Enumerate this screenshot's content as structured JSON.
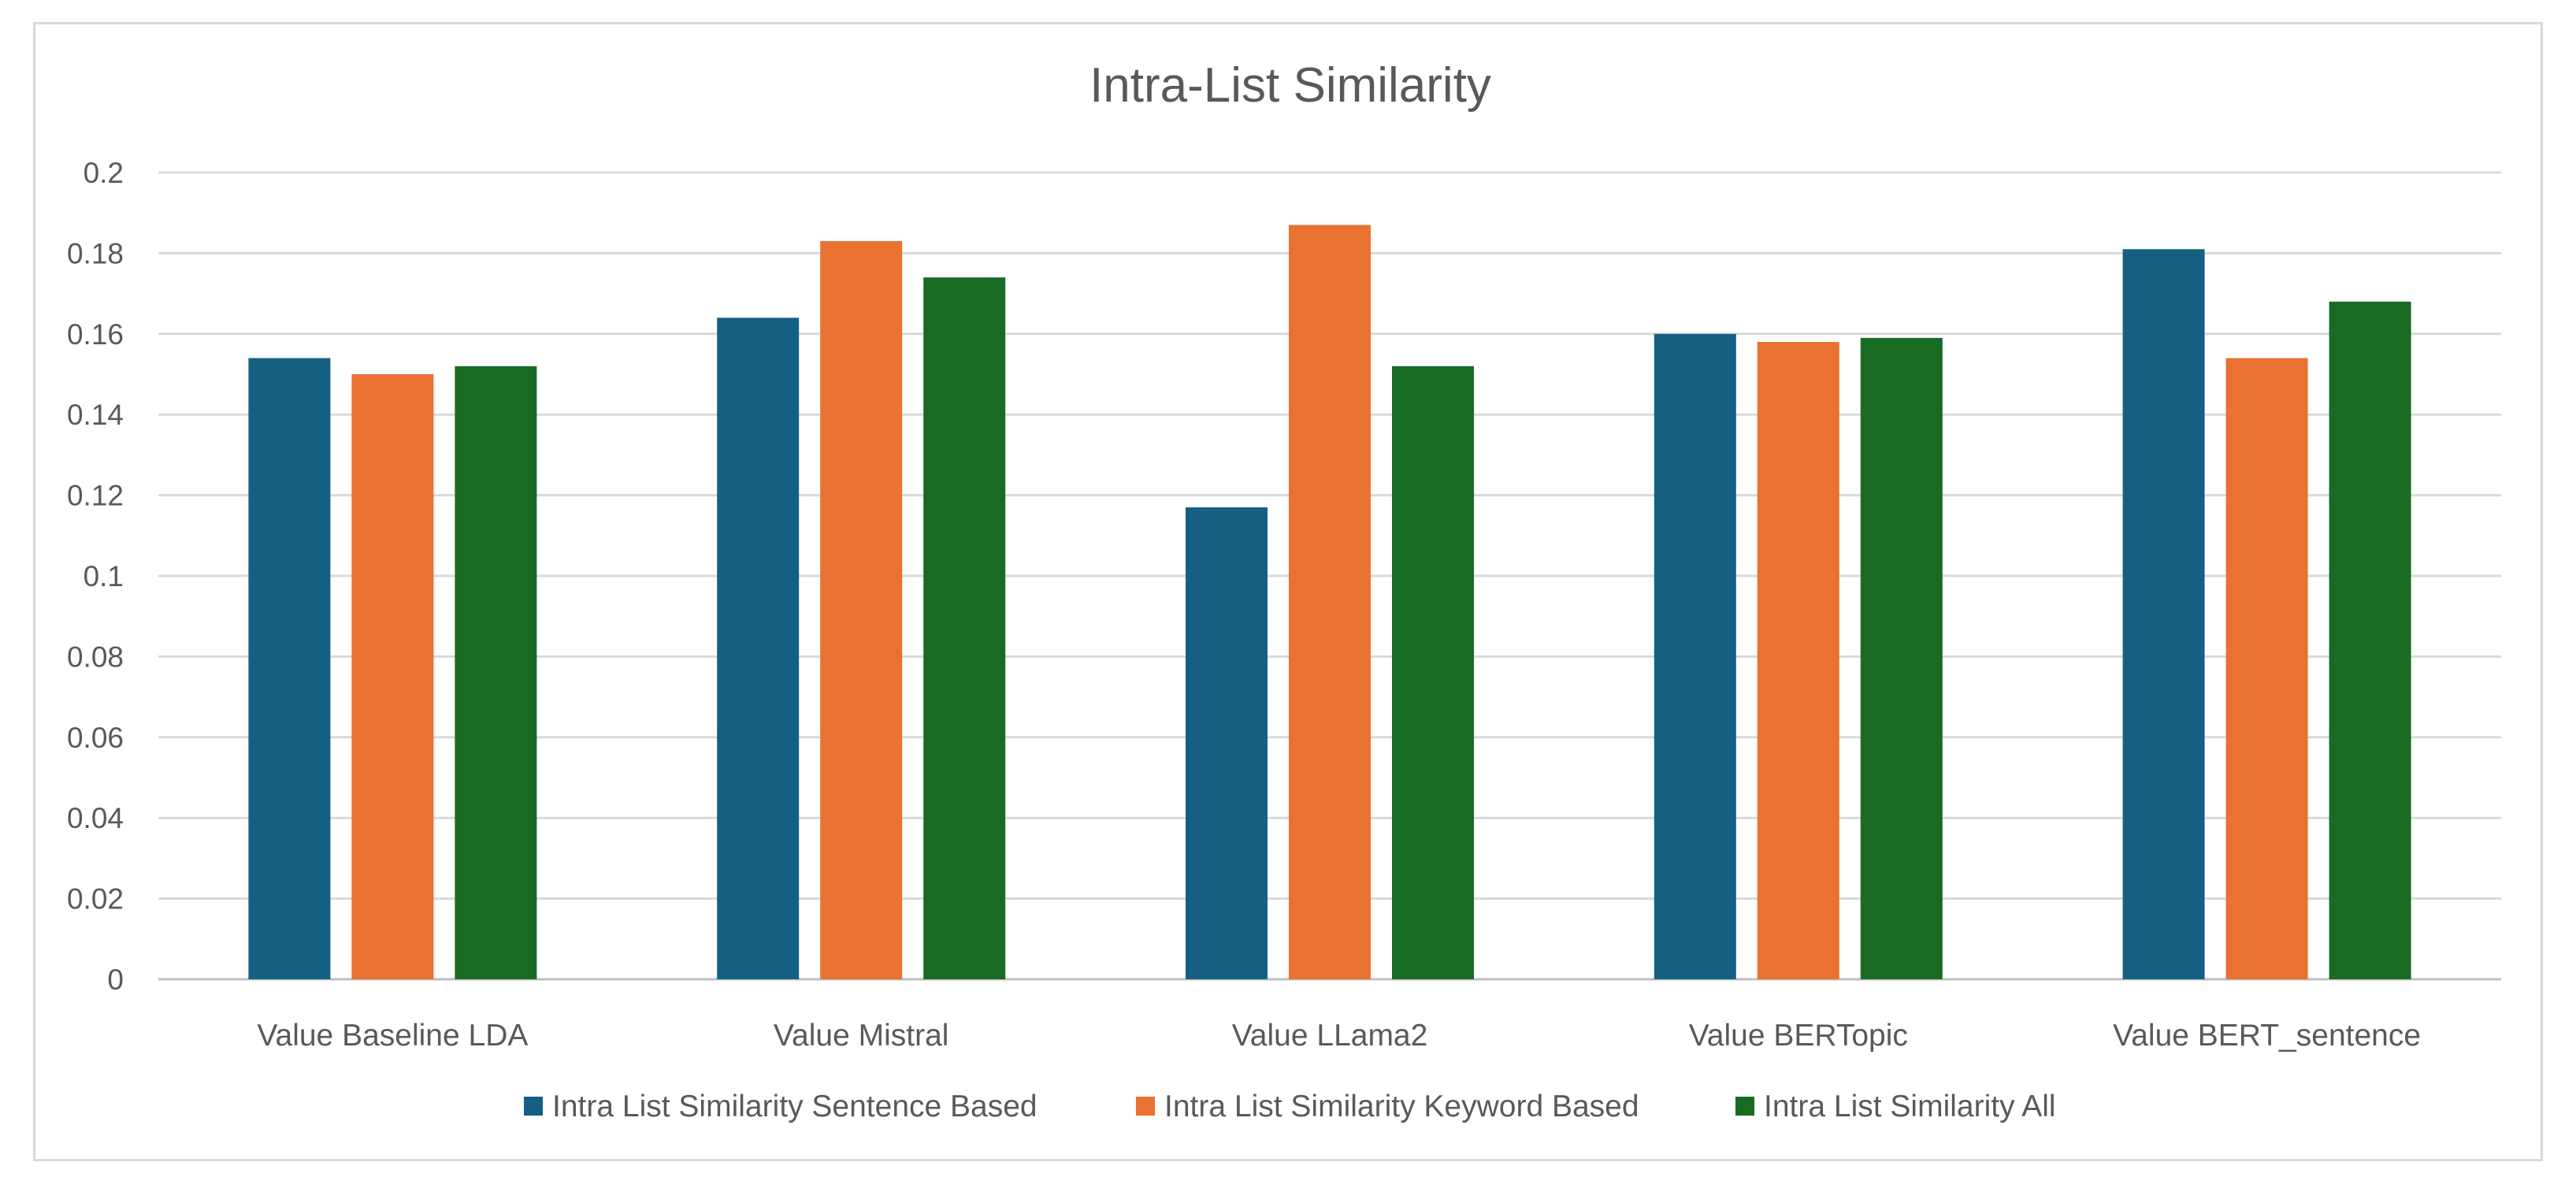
{
  "chart_data": {
    "type": "bar",
    "title": "Intra-List Similarity",
    "categories": [
      "Value Baseline LDA",
      "Value Mistral",
      "Value LLama2",
      "Value BERTopic",
      "Value BERT_sentence"
    ],
    "series": [
      {
        "name": "Intra List Similarity Sentence Based",
        "color": "#156082",
        "values": [
          0.154,
          0.164,
          0.117,
          0.16,
          0.181
        ]
      },
      {
        "name": "Intra List Similarity Keyword Based",
        "color": "#e97132",
        "values": [
          0.15,
          0.183,
          0.187,
          0.158,
          0.154
        ]
      },
      {
        "name": "Intra List Similarity All",
        "color": "#196b24",
        "values": [
          0.152,
          0.174,
          0.152,
          0.159,
          0.168
        ]
      }
    ],
    "ylim": [
      0,
      0.2
    ],
    "yticks": [
      "0",
      "0.02",
      "0.04",
      "0.06",
      "0.08",
      "0.1",
      "0.12",
      "0.14",
      "0.16",
      "0.18",
      "0.2"
    ],
    "grid": true,
    "legend_position": "bottom"
  }
}
